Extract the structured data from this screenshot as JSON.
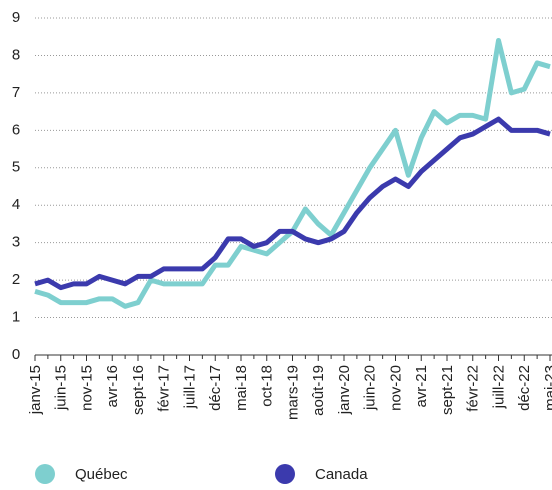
{
  "chart_data": {
    "type": "line",
    "categories": [
      "janv-15",
      null,
      "juin-15",
      null,
      "nov-15",
      null,
      "avr-16",
      null,
      "sept-16",
      null,
      "févr-17",
      null,
      "juill-17",
      null,
      "déc-17",
      null,
      "mai-18",
      null,
      "oct-18",
      null,
      "mars-19",
      null,
      "août-19",
      null,
      "janv-20",
      null,
      "juin-20",
      null,
      "nov-20",
      null,
      "avr-21",
      null,
      "sept-21",
      null,
      "févr-22",
      null,
      "juill-22",
      null,
      "déc-22",
      null,
      "mai-23"
    ],
    "series": [
      {
        "name": "Québec",
        "color": "#7ecfcf",
        "values": [
          1.7,
          1.6,
          1.4,
          1.4,
          1.4,
          1.5,
          1.5,
          1.3,
          1.4,
          2.0,
          1.9,
          1.9,
          1.9,
          1.9,
          2.4,
          2.4,
          2.9,
          2.8,
          2.7,
          3.0,
          3.3,
          3.9,
          3.5,
          3.2,
          3.8,
          4.4,
          5.0,
          5.5,
          6.0,
          4.8,
          5.8,
          6.5,
          6.2,
          6.4,
          6.4,
          6.3,
          8.4,
          7.0,
          7.1,
          7.8,
          7.7
        ]
      },
      {
        "name": "Canada",
        "color": "#3b3aad",
        "values": [
          1.9,
          2.0,
          1.8,
          1.9,
          1.9,
          2.1,
          2.0,
          1.9,
          2.1,
          2.1,
          2.3,
          2.3,
          2.3,
          2.3,
          2.6,
          3.1,
          3.1,
          2.9,
          3.0,
          3.3,
          3.3,
          3.1,
          3.0,
          3.1,
          3.3,
          3.8,
          4.2,
          4.5,
          4.7,
          4.5,
          4.9,
          5.2,
          5.5,
          5.8,
          5.9,
          6.1,
          6.3,
          6.0,
          6.0,
          6.0,
          5.9
        ]
      }
    ],
    "ylim": [
      0,
      9
    ],
    "yticks": [
      0,
      1,
      2,
      3,
      4,
      5,
      6,
      7,
      8,
      9
    ],
    "grid": true
  }
}
